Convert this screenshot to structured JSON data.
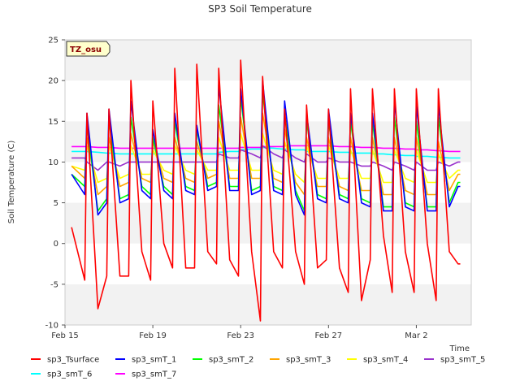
{
  "chart_data": {
    "type": "line",
    "title": "SP3 Soil Temperature",
    "xlabel": "Time",
    "ylabel": "Soil Temperature (C)",
    "ylim": [
      -10,
      25
    ],
    "yticks": [
      -10,
      -5,
      0,
      5,
      10,
      15,
      20,
      25
    ],
    "xlim": [
      0,
      18.5
    ],
    "xtick_labels": [
      {
        "day": 0,
        "label": "Feb 15"
      },
      {
        "day": 4,
        "label": "Feb 19"
      },
      {
        "day": 8,
        "label": "Feb 23"
      },
      {
        "day": 12,
        "label": "Feb 27"
      },
      {
        "day": 16,
        "label": "Mar 2"
      }
    ],
    "badge": "TZ_osu",
    "colors": {
      "sp3_Tsurface": "#ff0000",
      "sp3_smT_1": "#0000ff",
      "sp3_smT_2": "#00ff00",
      "sp3_smT_3": "#ffa500",
      "sp3_smT_4": "#ffff00",
      "sp3_smT_5": "#9932cc",
      "sp3_smT_6": "#00ffff",
      "sp3_smT_7": "#ff00ff"
    },
    "day_x": [
      0.3,
      0.9,
      1.0,
      1.5,
      1.9,
      2.0,
      2.5,
      2.9,
      3.0,
      3.5,
      3.9,
      4.0,
      4.5,
      4.9,
      5.0,
      5.5,
      5.9,
      6.0,
      6.5,
      6.9,
      7.0,
      7.5,
      7.9,
      8.0,
      8.5,
      8.9,
      9.0,
      9.5,
      9.9,
      10.0,
      10.5,
      10.9,
      11.0,
      11.5,
      11.9,
      12.0,
      12.5,
      12.9,
      13.0,
      13.5,
      13.9,
      14.0,
      14.5,
      14.9,
      15.0,
      15.5,
      15.9,
      16.0,
      16.5,
      16.9,
      17.0,
      17.5,
      17.9,
      18.0
    ],
    "series": [
      {
        "name": "sp3_Tsurface",
        "values": [
          2,
          -4.5,
          16,
          -8,
          -4,
          16.5,
          -4,
          -4,
          20,
          -1,
          -4.5,
          17.5,
          0,
          -3,
          21.5,
          -3,
          -3,
          22,
          -1,
          -2.5,
          21.5,
          -2,
          -4,
          22.5,
          -1,
          -9.5,
          20.5,
          -1,
          -3,
          16.5,
          -1,
          -5,
          17,
          -3,
          -2,
          16.5,
          -3,
          -6,
          19,
          -7,
          -2,
          19,
          1,
          -6,
          19,
          -1,
          -6,
          19,
          0,
          -7,
          19,
          -1,
          -2.5,
          -2.5
        ]
      },
      {
        "name": "sp3_smT_1",
        "values": [
          8.5,
          6,
          16,
          3.5,
          5,
          16.5,
          5,
          5.5,
          17.5,
          6.5,
          5.5,
          14,
          6.5,
          5.5,
          16,
          6.5,
          6,
          14.5,
          6.5,
          7,
          19.5,
          6.5,
          6.5,
          19,
          6,
          6.5,
          20,
          6.5,
          6,
          17.5,
          6,
          3.5,
          16,
          5.5,
          5,
          16.5,
          5.5,
          5,
          16,
          5,
          4.5,
          16,
          4,
          4,
          17.5,
          4.5,
          4,
          17,
          4,
          4,
          17,
          4.5,
          7,
          7
        ]
      },
      {
        "name": "sp3_smT_2",
        "values": [
          8.5,
          7,
          14.5,
          4,
          5.5,
          15,
          5.5,
          6,
          15.5,
          7,
          6,
          13,
          7,
          6,
          15,
          7,
          6.5,
          14,
          7,
          7.5,
          17,
          7,
          7,
          18,
          6.5,
          7,
          18.5,
          7,
          6.5,
          16,
          6.5,
          4,
          15,
          6,
          5.5,
          15,
          6,
          5.5,
          15,
          5.5,
          5,
          15,
          4.5,
          4.5,
          15.5,
          5,
          4.5,
          15,
          4.5,
          4.5,
          15.5,
          5,
          7.5,
          7.5
        ]
      },
      {
        "name": "sp3_smT_3",
        "values": [
          9.5,
          8,
          13,
          6,
          7,
          13,
          7,
          7.5,
          13.5,
          8,
          7.5,
          12.5,
          8,
          7.5,
          13,
          8,
          7.5,
          12.5,
          8,
          8.5,
          15,
          8,
          8,
          15.5,
          8,
          8,
          16,
          8,
          7.5,
          14,
          7.5,
          6,
          13,
          7,
          7,
          13,
          7,
          6.5,
          13,
          6.5,
          6.5,
          13,
          6,
          6,
          13,
          6.5,
          6,
          13,
          6,
          6,
          12.5,
          6.5,
          8.5,
          8.5
        ]
      },
      {
        "name": "sp3_smT_4",
        "values": [
          9.5,
          9,
          12,
          7.5,
          8,
          12,
          8,
          8.5,
          12,
          8.5,
          8.5,
          11.5,
          9,
          8.5,
          12,
          9,
          8.5,
          11.5,
          9,
          9,
          13,
          9,
          9,
          13.5,
          9,
          9,
          13.5,
          9,
          8.5,
          12.5,
          8.5,
          7.5,
          12,
          8,
          8,
          12,
          8,
          8,
          11.5,
          8,
          8,
          11.5,
          7.5,
          7.5,
          11.5,
          8,
          7.5,
          11.5,
          7.5,
          7.5,
          11,
          8,
          9,
          9
        ]
      },
      {
        "name": "sp3_smT_5",
        "values": [
          10.5,
          10.5,
          10,
          9,
          10,
          10,
          9.5,
          10,
          10,
          10,
          10,
          10,
          10,
          10,
          10,
          10,
          10,
          10,
          10,
          10,
          11,
          10.5,
          10.5,
          11.5,
          11,
          10.5,
          12,
          11,
          10.5,
          11.5,
          10.5,
          10,
          11,
          10,
          10,
          10.5,
          10,
          10,
          10,
          9.5,
          9.5,
          10,
          9.5,
          9,
          10,
          9.5,
          9,
          10,
          9,
          9,
          10,
          9.5,
          10,
          10
        ]
      },
      {
        "name": "sp3_smT_6",
        "values": [
          11.3,
          11.3,
          11.3,
          11.2,
          11.1,
          11.1,
          11,
          11,
          11,
          11,
          11,
          11,
          11,
          11,
          11,
          11,
          11,
          11,
          11,
          11,
          11.2,
          11.3,
          11.3,
          11.5,
          11.6,
          11.6,
          11.8,
          11.7,
          11.6,
          11.6,
          11.5,
          11.5,
          11.3,
          11.3,
          11.3,
          11.3,
          11.2,
          11.2,
          11.1,
          11.1,
          11.1,
          11,
          11,
          10.9,
          10.9,
          10.8,
          10.8,
          10.7,
          10.7,
          10.6,
          10.6,
          10.5,
          10.5,
          10.5
        ]
      },
      {
        "name": "sp3_smT_7",
        "values": [
          11.9,
          11.9,
          11.9,
          11.8,
          11.8,
          11.8,
          11.7,
          11.7,
          11.7,
          11.7,
          11.7,
          11.7,
          11.7,
          11.7,
          11.7,
          11.7,
          11.7,
          11.7,
          11.7,
          11.7,
          11.7,
          11.7,
          11.7,
          11.8,
          11.8,
          11.8,
          11.9,
          11.9,
          11.9,
          12,
          12,
          12,
          12,
          12,
          12,
          12,
          11.9,
          11.9,
          11.9,
          11.8,
          11.8,
          11.8,
          11.7,
          11.7,
          11.7,
          11.6,
          11.6,
          11.5,
          11.5,
          11.4,
          11.4,
          11.3,
          11.3,
          11.3
        ]
      }
    ]
  }
}
